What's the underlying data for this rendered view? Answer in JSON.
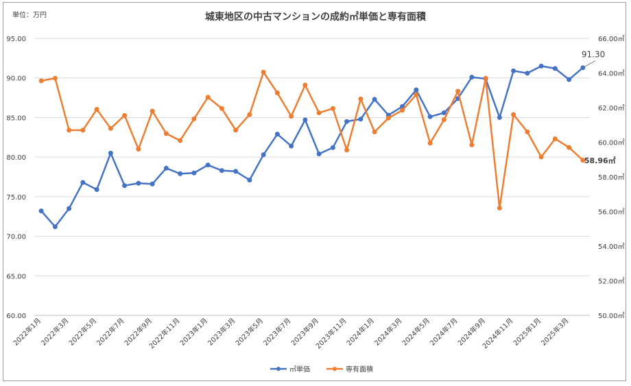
{
  "chart_data": {
    "type": "line",
    "title": "城東地区の中古マンションの成約㎡単価と専有面積",
    "unit_label": "単位：万円",
    "categories": [
      "2022年1月",
      "2022年2月",
      "2022年3月",
      "2022年4月",
      "2022年5月",
      "2022年6月",
      "2022年7月",
      "2022年8月",
      "2022年9月",
      "2022年10月",
      "2022年11月",
      "2022年12月",
      "2023年1月",
      "2023年2月",
      "2023年3月",
      "2023年4月",
      "2023年5月",
      "2023年6月",
      "2023年7月",
      "2023年8月",
      "2023年9月",
      "2023年10月",
      "2023年11月",
      "2023年12月",
      "2024年1月",
      "2024年2月",
      "2024年3月",
      "2024年4月",
      "2024年5月",
      "2024年6月",
      "2024年7月",
      "2024年8月",
      "2024年9月",
      "2024年10月",
      "2024年11月",
      "2024年12月",
      "2025年1月",
      "2025年2月",
      "2025年3月",
      "2025年4月"
    ],
    "x_tick_labels": [
      "2022年1月",
      "2022年3月",
      "2022年5月",
      "2022年7月",
      "2022年9月",
      "2022年11月",
      "2023年1月",
      "2023年3月",
      "2023年5月",
      "2023年7月",
      "2023年9月",
      "2023年11月",
      "2024年1月",
      "2024年3月",
      "2024年5月",
      "2024年7月",
      "2024年9月",
      "2024年11月",
      "2025年1月",
      "2025年3月"
    ],
    "y_left": {
      "min": 60,
      "max": 95,
      "ticks": [
        "60.00",
        "65.00",
        "70.00",
        "75.00",
        "80.00",
        "85.00",
        "90.00",
        "95.00"
      ]
    },
    "y_right": {
      "min": 50,
      "max": 66,
      "ticks": [
        "50.00㎡",
        "52.00㎡",
        "54.00㎡",
        "56.00㎡",
        "58.00㎡",
        "60.00㎡",
        "62.00㎡",
        "64.00㎡",
        "66.00㎡"
      ]
    },
    "series": [
      {
        "name": "㎡単価",
        "axis": "left",
        "color": "#4472c4",
        "values": [
          73.2,
          71.2,
          73.5,
          76.8,
          75.9,
          80.5,
          76.4,
          76.7,
          76.6,
          78.6,
          77.9,
          78.0,
          79.0,
          78.3,
          78.2,
          77.1,
          80.3,
          82.9,
          81.4,
          84.7,
          80.4,
          81.2,
          84.5,
          84.8,
          87.3,
          85.3,
          86.4,
          88.5,
          85.1,
          85.6,
          87.4,
          90.1,
          89.9,
          85.0,
          90.9,
          90.6,
          91.5,
          91.2,
          89.8,
          91.3
        ],
        "end_label": "91.30"
      },
      {
        "name": "専有面積",
        "axis": "right",
        "color": "#ed7d31",
        "values": [
          63.55,
          63.7,
          60.7,
          60.7,
          61.9,
          60.8,
          61.55,
          59.6,
          61.8,
          60.5,
          60.1,
          61.35,
          62.6,
          61.95,
          60.7,
          61.6,
          64.05,
          62.85,
          61.5,
          63.3,
          61.7,
          61.95,
          59.55,
          62.5,
          60.6,
          61.4,
          61.85,
          62.75,
          59.95,
          61.3,
          62.95,
          59.85,
          63.7,
          56.2,
          61.6,
          60.6,
          59.15,
          60.2,
          59.7,
          58.96
        ],
        "end_label": "58.96㎡"
      }
    ],
    "legend": {
      "placement": "bottom"
    },
    "grid": "horizontal"
  }
}
